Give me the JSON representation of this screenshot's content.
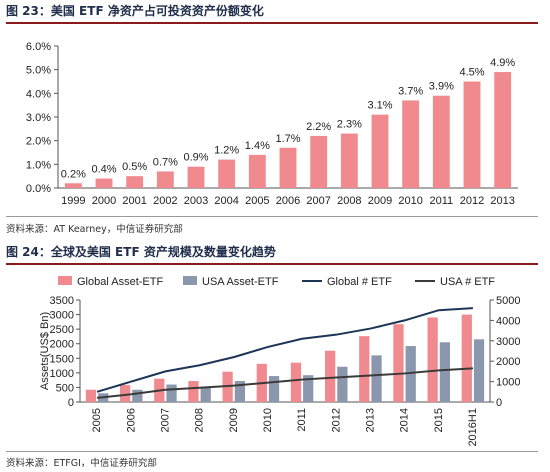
{
  "fig1": {
    "title": "图 23：美国 ETF 净资产占可投资资产份额变化",
    "source": "资料来源：AT Kearney，中信证券研究部"
  },
  "fig2": {
    "title": "图 24：全球及美国 ETF 资产规模及数量变化趋势",
    "source": "资料来源：ETFGI，中信证券研究部"
  },
  "colors": {
    "bar_red": "#f08a8e",
    "bar_gray": "#8b97ac",
    "line_navy": "#1d3557",
    "line_dark": "#3a3a3a",
    "title_rule": "#8b1a1a"
  },
  "chart_data": [
    {
      "type": "bar",
      "categories": [
        "1999",
        "2000",
        "2001",
        "2002",
        "2003",
        "2004",
        "2005",
        "2006",
        "2007",
        "2008",
        "2009",
        "2010",
        "2011",
        "2012",
        "2013"
      ],
      "values": [
        0.2,
        0.4,
        0.5,
        0.7,
        0.9,
        1.2,
        1.4,
        1.7,
        2.2,
        2.3,
        3.1,
        3.7,
        3.9,
        4.5,
        4.9
      ],
      "data_labels": [
        "0.2%",
        "0.4%",
        "0.5%",
        "0.7%",
        "0.9%",
        "1.2%",
        "1.4%",
        "1.7%",
        "2.2%",
        "2.3%",
        "3.1%",
        "3.7%",
        "3.9%",
        "4.5%",
        "4.9%"
      ],
      "yticks": [
        "0.0%",
        "1.0%",
        "2.0%",
        "3.0%",
        "4.0%",
        "5.0%",
        "6.0%"
      ],
      "ylim": [
        0,
        6
      ],
      "grid": false
    },
    {
      "type": "bar",
      "categories": [
        "2005",
        "2006",
        "2007",
        "2008",
        "2009",
        "2010",
        "2011",
        "2012",
        "2013",
        "2014",
        "2015",
        "2016H1"
      ],
      "series": [
        {
          "name": "Global Asset-ETF",
          "kind": "bar",
          "axis": "left",
          "values": [
            420,
            580,
            800,
            720,
            1040,
            1310,
            1350,
            1760,
            2260,
            2670,
            2900,
            3000
          ]
        },
        {
          "name": "USA Asset-ETF",
          "kind": "bar",
          "axis": "left",
          "values": [
            300,
            420,
            600,
            530,
            720,
            890,
            920,
            1210,
            1600,
            1920,
            2050,
            2150
          ]
        },
        {
          "name": "Global # ETF",
          "kind": "line",
          "axis": "right",
          "values": [
            500,
            1000,
            1500,
            1800,
            2200,
            2700,
            3100,
            3300,
            3600,
            4000,
            4500,
            4600
          ]
        },
        {
          "name": "USA # ETF",
          "kind": "line",
          "axis": "right",
          "values": [
            200,
            380,
            600,
            700,
            800,
            950,
            1100,
            1200,
            1300,
            1400,
            1550,
            1650
          ]
        }
      ],
      "ylabel": "Assets(US$ Bn)",
      "yticks_left": [
        "0",
        "500",
        "1000",
        "1500",
        "2000",
        "2500",
        "3000",
        "3500"
      ],
      "ylim_left": [
        0,
        3500
      ],
      "yticks_right": [
        "0",
        "1000",
        "2000",
        "3000",
        "4000",
        "5000"
      ],
      "ylim_right": [
        0,
        5000
      ],
      "legend": "top",
      "grid": false
    }
  ]
}
